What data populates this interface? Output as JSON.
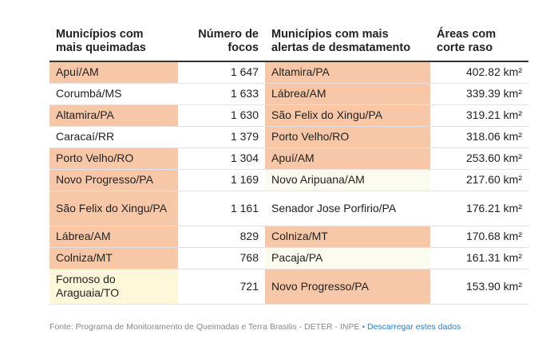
{
  "headers": {
    "col1": "Municípios com mais queimadas",
    "col2": "Número de focos",
    "col3": "Municípios com mais alertas de desmatamento",
    "col4": "Áreas com corte raso"
  },
  "rows": [
    {
      "mun1": "Apuí/AM",
      "focos": "1 647",
      "mun2": "Altamira/PA",
      "area": "402.82 km²"
    },
    {
      "mun1": "Corumbá/MS",
      "focos": "1 633",
      "mun2": "Lábrea/AM",
      "area": "339.39 km²"
    },
    {
      "mun1": "Altamira/PA",
      "focos": "1 630",
      "mun2": "São Felix do Xingu/PA",
      "area": "319.21 km²"
    },
    {
      "mun1": "Caracaí/RR",
      "focos": "1 379",
      "mun2": "Porto Velho/RO",
      "area": "318.06 km²"
    },
    {
      "mun1": "Porto Velho/RO",
      "focos": "1 304",
      "mun2": "Apuí/AM",
      "area": "253.60 km²"
    },
    {
      "mun1": "Novo Progresso/PA",
      "focos": "1 169",
      "mun2": "Novo Aripuana/AM",
      "area": "217.60 km²"
    },
    {
      "mun1": "São Felix do Xingu/PA",
      "focos": "1 161",
      "mun2": "Senador Jose Porfirio/PA",
      "area": "176.21 km²"
    },
    {
      "mun1": "Lábrea/AM",
      "focos": "829",
      "mun2": "Colniza/MT",
      "area": "170.68 km²"
    },
    {
      "mun1": "Colniza/MT",
      "focos": "768",
      "mun2": "Pacaja/PA",
      "area": "161.31 km²"
    },
    {
      "mun1": "Formoso do Araguaia/TO",
      "focos": "721",
      "mun2": "Novo Progresso/PA",
      "area": "153.90 km²"
    }
  ],
  "source": {
    "text": "Fonte: Programa de Monitoramento de Queimadas e Terra Brasilis - DETER - INPE",
    "separator": "•",
    "link": "Descarregar estes dados"
  },
  "colors": {
    "hot": "#f8c7a7",
    "warm": "#fef7d9",
    "link": "#2f7fbf"
  }
}
